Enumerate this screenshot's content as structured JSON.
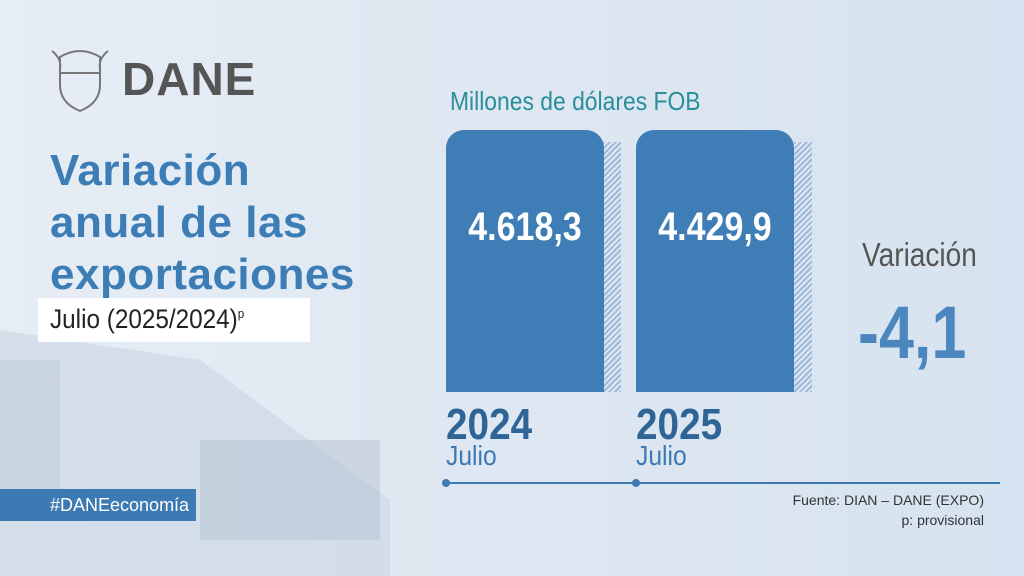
{
  "header": {
    "logo": "DANE"
  },
  "title": {
    "lines": [
      "Variación",
      "anual de las",
      "exportaciones"
    ]
  },
  "subtitle": {
    "text": "Julio (2025/2024)",
    "superscript": "p"
  },
  "hashtag": "#DANEeconomía",
  "unit": "Millones de dólares FOB",
  "bars": [
    {
      "value": "4.618,3",
      "year": "2024",
      "month": "Julio"
    },
    {
      "value": "4.429,9",
      "year": "2025",
      "month": "Julio"
    }
  ],
  "variation": {
    "label": "Variación",
    "value": "-4,1"
  },
  "footer": {
    "source": "Fuente: DIAN – DANE (EXPO)",
    "note": "p: provisional"
  }
}
